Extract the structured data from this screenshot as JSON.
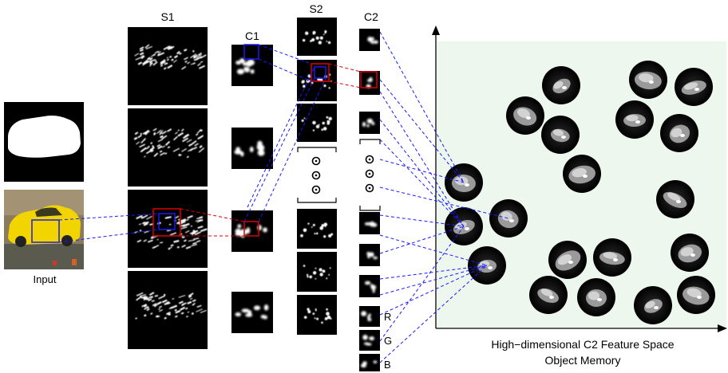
{
  "labels": {
    "s1": "S1",
    "c1": "C1",
    "s2": "S2",
    "c2": "C2",
    "input": "Input",
    "r": "R",
    "g": "G",
    "b": "B",
    "feature_space": "High−dimensional C2 Feature Space",
    "object_memory": "Object Memory"
  },
  "colors": {
    "feature_panel_bg": "#eef7ee",
    "connector_blue": "#1a1aff",
    "connector_red": "#e00000",
    "box_blue": "#1a1af0",
    "box_red": "#e00000",
    "map_bg": "#000000",
    "memory_disc": "#0a0a0a",
    "car_yellow": "#f2d400"
  },
  "icons": {
    "ellipsis": "circle-dot-icon",
    "axis_arrow": "arrowhead-icon"
  }
}
